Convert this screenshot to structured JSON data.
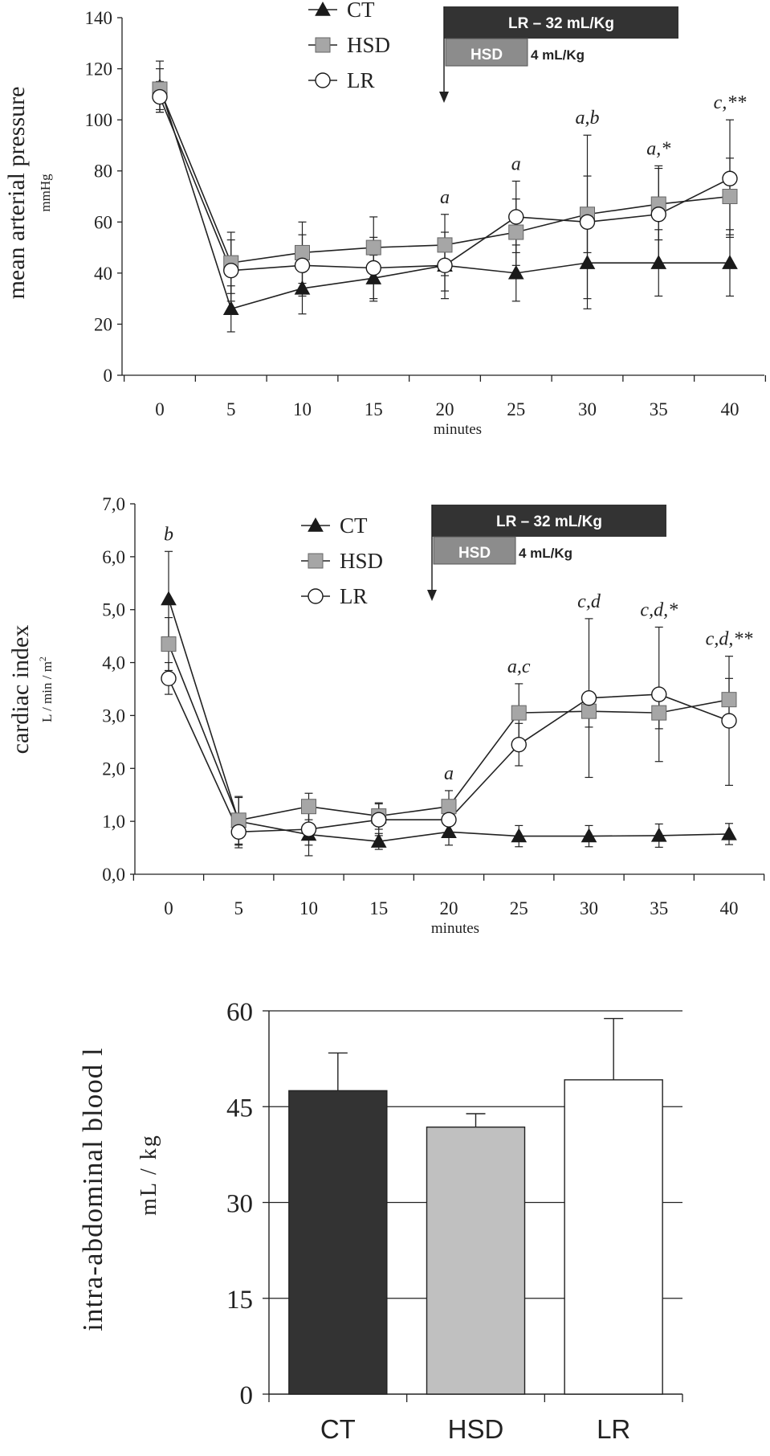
{
  "chart_data": [
    {
      "type": "line",
      "ylabel": "mean arterial pressure",
      "yunit": "mmHg",
      "xlabel": "minutes",
      "ylim": [
        0,
        140
      ],
      "yticks": [
        "0",
        "20",
        "40",
        "60",
        "80",
        "100",
        "120",
        "140"
      ],
      "xticks": [
        "0",
        "5",
        "10",
        "15",
        "20",
        "25",
        "30",
        "35",
        "40"
      ],
      "x": [
        0,
        5,
        10,
        15,
        20,
        25,
        30,
        35,
        40
      ],
      "series": [
        {
          "name": "CT",
          "marker": "triangle",
          "values": [
            113,
            26,
            34,
            38,
            43,
            40,
            44,
            44,
            44
          ],
          "err": [
            10,
            9,
            10,
            9,
            10,
            11,
            14,
            13,
            13
          ]
        },
        {
          "name": "HSD",
          "marker": "square",
          "values": [
            112,
            44,
            48,
            50,
            51,
            56,
            63,
            67,
            70
          ],
          "err": [
            8,
            12,
            12,
            12,
            12,
            13,
            15,
            14,
            15
          ]
        },
        {
          "name": "LR",
          "marker": "circle",
          "values": [
            109,
            41,
            43,
            42,
            43,
            62,
            60,
            63,
            77
          ],
          "err": [
            6,
            12,
            12,
            12,
            13,
            14,
            34,
            19,
            23
          ]
        }
      ],
      "annotations": [
        {
          "x": 20,
          "text": "a"
        },
        {
          "x": 25,
          "text": "a"
        },
        {
          "x": 30,
          "text": "a,b"
        },
        {
          "x": 35,
          "text": "a,*"
        },
        {
          "x": 40,
          "text": "c,**"
        }
      ],
      "treatment_bars": {
        "lr": "LR – 32 mL/Kg",
        "hsd": "HSD",
        "hsd_dose": "4 mL/Kg"
      }
    },
    {
      "type": "line",
      "ylabel": "cardiac index",
      "yunit": "L / min / m",
      "yunit_sup": "2",
      "xlabel": "minutes",
      "ylim": [
        0,
        7
      ],
      "yticks": [
        "0,0",
        "1,0",
        "2,0",
        "3,0",
        "4,0",
        "5,0",
        "6,0",
        "7,0"
      ],
      "xticks": [
        "0",
        "5",
        "10",
        "15",
        "20",
        "25",
        "30",
        "35",
        "40"
      ],
      "x": [
        0,
        5,
        10,
        15,
        20,
        25,
        30,
        35,
        40
      ],
      "series": [
        {
          "name": "CT",
          "marker": "triangle",
          "values": [
            5.2,
            1.0,
            0.75,
            0.62,
            0.8,
            0.72,
            0.72,
            0.73,
            0.76
          ],
          "err": [
            0.9,
            0.45,
            0.4,
            0.15,
            0.25,
            0.2,
            0.2,
            0.22,
            0.2
          ]
        },
        {
          "name": "HSD",
          "marker": "square",
          "values": [
            4.35,
            1.02,
            1.28,
            1.1,
            1.28,
            3.05,
            3.08,
            3.05,
            3.3
          ],
          "err": [
            0.5,
            0.45,
            0.25,
            0.25,
            0.3,
            0.55,
            0.3,
            0.3,
            0.4
          ]
        },
        {
          "name": "LR",
          "marker": "circle",
          "values": [
            3.7,
            0.8,
            0.85,
            1.03,
            1.03,
            2.45,
            3.33,
            3.4,
            2.9
          ],
          "err": [
            0.3,
            0.3,
            0.3,
            0.3,
            0.3,
            0.4,
            1.5,
            1.27,
            1.22
          ]
        }
      ],
      "annotations": [
        {
          "x": 0,
          "text": "b"
        },
        {
          "x": 20,
          "text": "a"
        },
        {
          "x": 25,
          "text": "a,c"
        },
        {
          "x": 30,
          "text": "c,d"
        },
        {
          "x": 35,
          "text": "c,d,*"
        },
        {
          "x": 40,
          "text": "c,d,**"
        }
      ],
      "treatment_bars": {
        "lr": "LR – 32 mL/Kg",
        "hsd": "HSD",
        "hsd_dose": "4 mL/Kg"
      }
    },
    {
      "type": "bar",
      "ylabel": "intra-abdominal blood l",
      "yunit": "mL / kg",
      "ylim": [
        0,
        60
      ],
      "yticks": [
        "0",
        "15",
        "30",
        "45",
        "60"
      ],
      "categories": [
        "CT",
        "HSD",
        "LR"
      ],
      "values": [
        47.5,
        41.8,
        49.2
      ],
      "err": [
        5.9,
        2.1,
        9.6
      ],
      "colors": [
        "#333333",
        "#c0c0c0",
        "#ffffff"
      ]
    }
  ]
}
